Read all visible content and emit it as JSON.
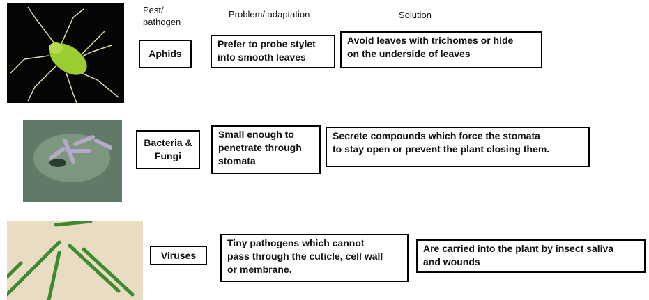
{
  "header": {
    "pest": [
      "Pest/",
      "pathogen"
    ],
    "problem": "Problem/ adaptation",
    "solution": "Solution"
  },
  "rows": [
    {
      "pest": [
        "Aphids"
      ],
      "problem": [
        "Prefer to probe stylet",
        "into smooth leaves"
      ],
      "solution": [
        "Avoid leaves with trichomes or hide",
        "on the underside of leaves"
      ]
    },
    {
      "pest": [
        "Bacteria &",
        "Fungi"
      ],
      "problem": [
        "Small enough to",
        "penetrate through",
        "stomata"
      ],
      "solution": [
        "Secrete compounds which force the stomata",
        "to stay open or prevent the plant closing them."
      ]
    },
    {
      "pest": [
        "Viruses"
      ],
      "problem": [
        "Tiny pathogens which cannot",
        "pass through the cuticle, cell wall",
        "or membrane."
      ],
      "solution": [
        "Are carried into the plant by insect saliva",
        "and wounds"
      ]
    }
  ]
}
